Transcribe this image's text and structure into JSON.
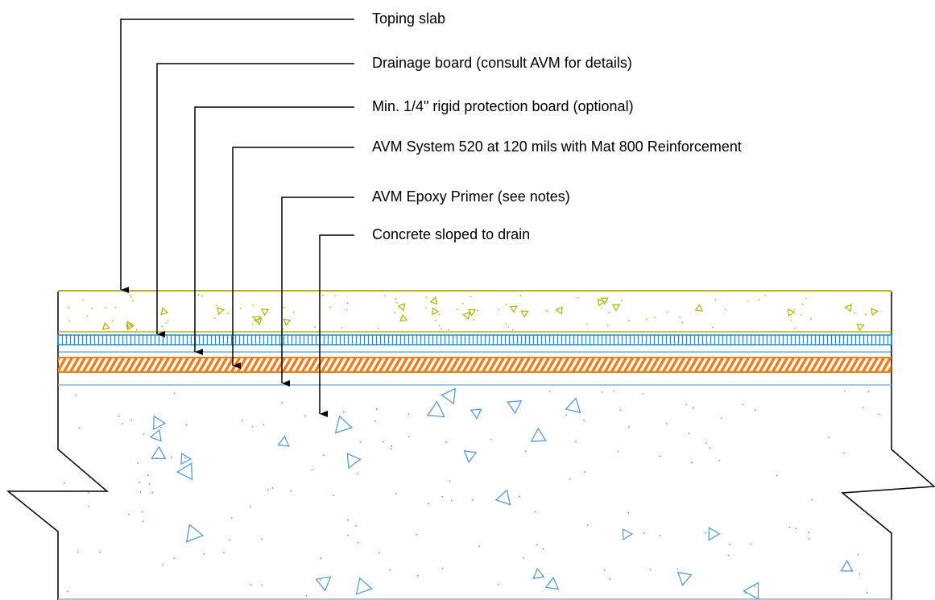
{
  "callouts": [
    "Toping slab",
    "Drainage board (consult AVM for details)",
    "Min. 1/4\" rigid protection board (optional)",
    "AVM System 520 at 120 mils with Mat 800 Reinforcement",
    "AVM Epoxy Primer (see notes)",
    "Concrete sloped to drain"
  ],
  "colors": {
    "topping_slab": "#b5b51a",
    "drainage_board": "#1f8bd6",
    "membrane": "#f07d1a",
    "primer_line": "#8ab4dc",
    "concrete_aggregate": "#5a9bd5",
    "outline": "#000000"
  },
  "icons": {
    "leader_arrow": "arrowhead-down-icon",
    "break_line": "zigzag-break-icon"
  }
}
